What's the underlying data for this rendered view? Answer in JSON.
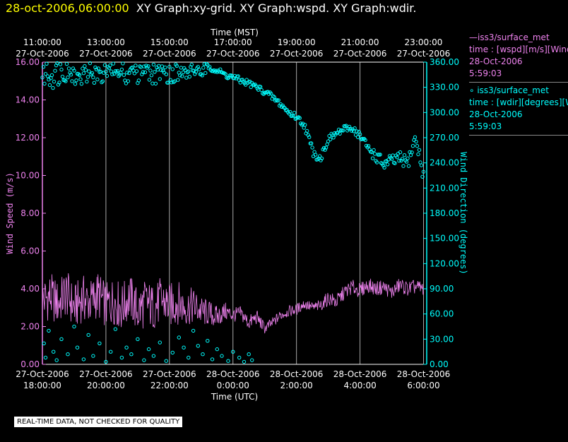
{
  "header": {
    "timestamp": "28-oct-2006,06:00:00",
    "graphs": "XY Graph:xy-grid.  XY Graph:wspd.  XY Graph:wdir."
  },
  "legend": {
    "entries": [
      {
        "line1": "—iss3/surface_met",
        "line2": "time : [wspd][m/s][Wind",
        "line3": "28-Oct-2006",
        "line4": "5:59:03",
        "color": "#ee82ee"
      },
      {
        "line1": "∘ iss3/surface_met",
        "line2": "time : [wdir][degrees][Wind",
        "line3": "28-Oct-2006",
        "line4": "5:59:03",
        "color": "#00ffff"
      }
    ]
  },
  "notice": "REAL-TIME DATA, NOT CHECKED FOR QUALITY",
  "chart_data": {
    "type": "line",
    "top_axis": {
      "title": "Time (MST)",
      "ticks": [
        {
          "time": "11:00:00",
          "date": "27-Oct-2006"
        },
        {
          "time": "13:00:00",
          "date": "27-Oct-2006"
        },
        {
          "time": "15:00:00",
          "date": "27-Oct-2006"
        },
        {
          "time": "17:00:00",
          "date": "27-Oct-2006"
        },
        {
          "time": "19:00:00",
          "date": "27-Oct-2006"
        },
        {
          "time": "21:00:00",
          "date": "27-Oct-2006"
        },
        {
          "time": "23:00:00",
          "date": "27-Oct-2006"
        }
      ]
    },
    "bottom_axis": {
      "title": "Time (UTC)",
      "ticks": [
        {
          "date": "27-Oct-2006",
          "time": "18:00:00"
        },
        {
          "date": "27-Oct-2006",
          "time": "20:00:00"
        },
        {
          "date": "27-Oct-2006",
          "time": "22:00:00"
        },
        {
          "date": "28-Oct-2006",
          "time": "0:00:00"
        },
        {
          "date": "28-Oct-2006",
          "time": "2:00:00"
        },
        {
          "date": "28-Oct-2006",
          "time": "4:00:00"
        },
        {
          "date": "28-Oct-2006",
          "time": "6:00:00"
        }
      ]
    },
    "x_range_hours": [
      0,
      12.1
    ],
    "x_tick_hours": [
      0,
      2,
      4,
      6,
      8,
      10,
      12
    ],
    "left_axis": {
      "title": "Wind Speed (m/s)",
      "range": [
        0,
        16
      ],
      "ticks": [
        "0.00",
        "2.00",
        "4.00",
        "6.00",
        "8.00",
        "10.00",
        "12.00",
        "14.00",
        "16.00"
      ],
      "tick_values": [
        0,
        2,
        4,
        6,
        8,
        10,
        12,
        14,
        16
      ],
      "color": "#ee82ee"
    },
    "right_axis": {
      "title": "Wind Direction (degrees)",
      "range": [
        0,
        360
      ],
      "ticks": [
        "0.00",
        "30.00",
        "60.00",
        "90.00",
        "120.00",
        "150.00",
        "180.00",
        "210.00",
        "240.00",
        "270.00",
        "300.00",
        "330.00",
        "360.00"
      ],
      "tick_values": [
        0,
        30,
        60,
        90,
        120,
        150,
        180,
        210,
        240,
        270,
        300,
        330,
        360
      ],
      "color": "#00ffff"
    },
    "series": [
      {
        "name": "wspd",
        "style": "line",
        "axis": "left",
        "color": "#ee82ee",
        "x": [
          0,
          0.25,
          0.5,
          0.75,
          1,
          1.25,
          1.5,
          1.75,
          2,
          2.25,
          2.5,
          2.75,
          3,
          3.25,
          3.5,
          3.75,
          4,
          4.25,
          4.5,
          4.75,
          5,
          5.25,
          5.5,
          5.75,
          6,
          6.25,
          6.5,
          6.75,
          7,
          7.25,
          7.5,
          7.75,
          8,
          8.25,
          8.5,
          8.75,
          9,
          9.25,
          9.5,
          9.75,
          10,
          10.25,
          10.5,
          10.75,
          11,
          11.25,
          11.5,
          11.75,
          12
        ],
        "y": [
          3.4,
          3.6,
          3.2,
          3.8,
          3.0,
          3.5,
          3.3,
          3.7,
          3.1,
          3.4,
          3.0,
          3.6,
          2.8,
          3.3,
          3.0,
          3.4,
          3.1,
          3.3,
          3.0,
          3.1,
          2.8,
          2.7,
          2.5,
          2.8,
          2.6,
          2.7,
          2.2,
          2.5,
          1.9,
          2.2,
          2.6,
          2.8,
          2.9,
          3.2,
          3.0,
          3.1,
          3.5,
          3.3,
          3.8,
          4.1,
          3.9,
          4.2,
          4.0,
          4.1,
          3.8,
          4.2,
          4.0,
          4.1,
          4.0
        ],
        "amplitude": [
          1.2,
          1.3,
          1.2,
          1.3,
          1.2,
          1.3,
          1.2,
          1.3,
          1.2,
          1.3,
          1.3,
          1.2,
          1.3,
          1.3,
          1.2,
          1.3,
          1.2,
          1.2,
          1.0,
          1.0,
          0.8,
          0.7,
          0.6,
          0.5,
          0.4,
          0.4,
          0.4,
          0.4,
          0.3,
          0.3,
          0.3,
          0.3,
          0.3,
          0.3,
          0.3,
          0.3,
          0.4,
          0.4,
          0.4,
          0.4,
          0.4,
          0.4,
          0.4,
          0.4,
          0.4,
          0.4,
          0.4,
          0.4,
          0.4
        ]
      },
      {
        "name": "wdir",
        "style": "scatter",
        "axis": "right",
        "color": "#00ffff",
        "x": [
          0,
          0.25,
          0.5,
          0.75,
          1,
          1.25,
          1.5,
          1.75,
          2,
          2.25,
          2.5,
          2.75,
          3,
          3.25,
          3.5,
          3.75,
          4,
          4.25,
          4.5,
          4.75,
          5,
          5.25,
          5.5,
          5.75,
          6,
          6.25,
          6.5,
          6.75,
          7,
          7.25,
          7.5,
          7.75,
          8,
          8.25,
          8.5,
          8.75,
          9,
          9.25,
          9.5,
          9.75,
          10,
          10.25,
          10.5,
          10.75,
          11,
          11.25,
          11.5,
          11.75,
          12
        ],
        "y": [
          350,
          345,
          350,
          355,
          352,
          348,
          350,
          353,
          350,
          355,
          352,
          350,
          353,
          356,
          350,
          355,
          352,
          350,
          354,
          358,
          356,
          355,
          350,
          345,
          342,
          338,
          335,
          330,
          325,
          318,
          310,
          300,
          295,
          285,
          255,
          245,
          268,
          275,
          280,
          282,
          272,
          258,
          248,
          238,
          242,
          245,
          240,
          270,
          225
        ],
        "spread": [
          18,
          18,
          18,
          18,
          18,
          18,
          18,
          18,
          18,
          18,
          18,
          18,
          18,
          18,
          18,
          18,
          18,
          18,
          18,
          18,
          4,
          4,
          4,
          4,
          4,
          4,
          4,
          4,
          4,
          4,
          4,
          4,
          4,
          4,
          6,
          6,
          4,
          4,
          4,
          4,
          6,
          6,
          8,
          8,
          8,
          8,
          8,
          8,
          8
        ],
        "wrap_points": [
          [
            0.05,
            25
          ],
          [
            0.1,
            8
          ],
          [
            0.2,
            40
          ],
          [
            0.35,
            15
          ],
          [
            0.45,
            5
          ],
          [
            0.6,
            30
          ],
          [
            0.8,
            12
          ],
          [
            1.0,
            45
          ],
          [
            1.1,
            20
          ],
          [
            1.3,
            6
          ],
          [
            1.45,
            35
          ],
          [
            1.6,
            10
          ],
          [
            1.8,
            25
          ],
          [
            2.0,
            3
          ],
          [
            2.15,
            15
          ],
          [
            2.3,
            42
          ],
          [
            2.5,
            8
          ],
          [
            2.65,
            20
          ],
          [
            2.8,
            12
          ],
          [
            3.0,
            30
          ],
          [
            3.2,
            5
          ],
          [
            3.35,
            18
          ],
          [
            3.5,
            10
          ],
          [
            3.7,
            26
          ],
          [
            3.9,
            4
          ],
          [
            4.1,
            14
          ],
          [
            4.3,
            32
          ],
          [
            4.45,
            20
          ],
          [
            4.6,
            8
          ],
          [
            4.75,
            40
          ],
          [
            4.9,
            22
          ],
          [
            5.05,
            12
          ],
          [
            5.2,
            28
          ],
          [
            5.35,
            6
          ],
          [
            5.5,
            18
          ],
          [
            5.65,
            10
          ],
          [
            5.85,
            4
          ],
          [
            6.0,
            15
          ],
          [
            6.2,
            8
          ],
          [
            6.35,
            3
          ],
          [
            6.5,
            12
          ],
          [
            6.6,
            5
          ]
        ]
      }
    ]
  }
}
